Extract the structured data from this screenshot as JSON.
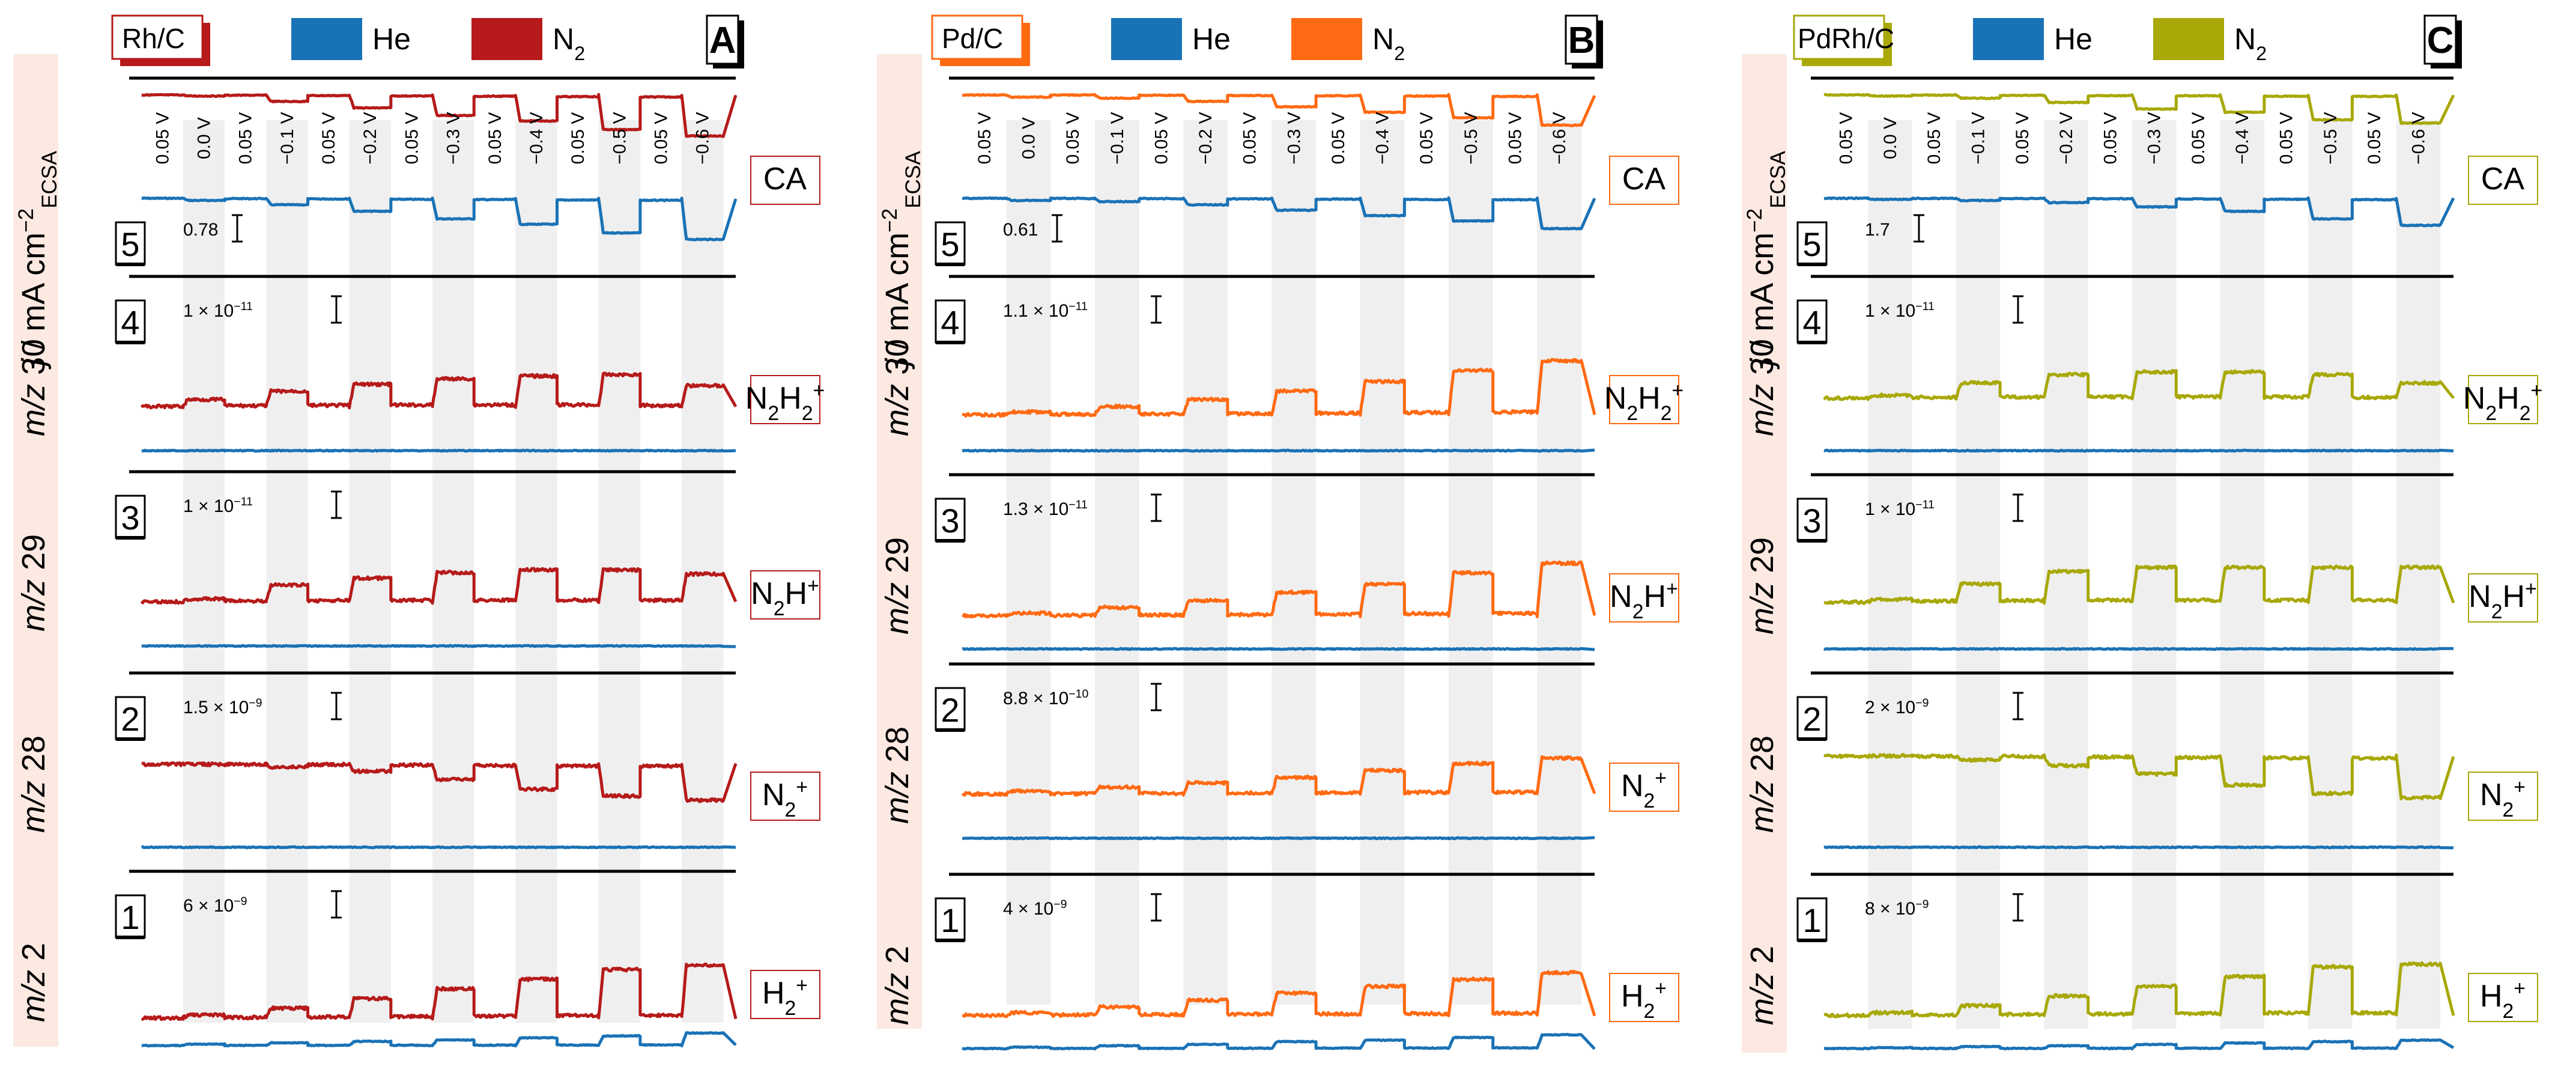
{
  "chart_data": [
    {
      "type": "line",
      "panel": "A",
      "catalyst": "Rh/C",
      "legend": [
        {
          "name": "He",
          "color": "#1a72b6"
        },
        {
          "name": "N2",
          "color": "#b61a1a"
        }
      ],
      "potential_steps": [
        "0.05 V",
        "0.0 V",
        "0.05 V",
        "−0.1 V",
        "0.05 V",
        "−0.2 V",
        "0.05 V",
        "−0.3 V",
        "0.05 V",
        "−0.4 V",
        "0.05 V",
        "−0.5 V",
        "0.05 V",
        "−0.6 V"
      ],
      "rows": [
        {
          "num": "5",
          "signal": "CA",
          "ylabel": "j / mA cm−2 ECSA",
          "scale_bar": "0.78",
          "series": [
            {
              "name": "He",
              "baseline": 0,
              "steps": [
                0.1,
                0.3,
                0.6,
                0.95,
                1.2,
                1.6,
                1.9
              ]
            },
            {
              "name": "N2",
              "baseline": 3.0,
              "steps": [
                0.05,
                0.3,
                0.6,
                0.95,
                1.2,
                1.6,
                1.9
              ]
            }
          ]
        },
        {
          "num": "4",
          "signal": "m/z 30",
          "ion": "N2H2+",
          "scale_bar": "1 × 10−11",
          "series": [
            {
              "name": "He",
              "baseline": 0,
              "steps": [
                0,
                0,
                0,
                0,
                0,
                0,
                0
              ]
            },
            {
              "name": "N2",
              "baseline": 1.6,
              "steps": [
                0.25,
                0.55,
                0.8,
                1.0,
                1.1,
                1.15,
                0.75
              ]
            }
          ]
        },
        {
          "num": "3",
          "signal": "m/z 29",
          "ion": "N2H+",
          "scale_bar": "1 × 10−11",
          "series": [
            {
              "name": "He",
              "baseline": 0,
              "steps": [
                0,
                0,
                0,
                0,
                0,
                0,
                0
              ]
            },
            {
              "name": "N2",
              "baseline": 1.6,
              "steps": [
                0.1,
                0.6,
                0.85,
                1.05,
                1.15,
                1.15,
                1.0
              ]
            }
          ]
        },
        {
          "num": "2",
          "signal": "m/z 28",
          "ion": "N2+",
          "scale_bar": "1.5 × 10−9",
          "series": [
            {
              "name": "He",
              "baseline": 0,
              "steps": [
                0,
                0,
                0,
                0,
                0,
                0,
                0
              ]
            },
            {
              "name": "N2",
              "baseline": 3.0,
              "steps": [
                0.0,
                -0.1,
                -0.25,
                -0.55,
                -0.9,
                -1.15,
                -1.3
              ]
            }
          ]
        },
        {
          "num": "1",
          "signal": "m/z 2",
          "ion": "H2+",
          "scale_bar": "6 × 10−9",
          "series": [
            {
              "name": "He",
              "baseline": 0,
              "steps": [
                0.05,
                0.1,
                0.15,
                0.2,
                0.28,
                0.35,
                0.45
              ]
            },
            {
              "name": "N2",
              "baseline": 1.0,
              "steps": [
                0.1,
                0.35,
                0.7,
                1.05,
                1.4,
                1.75,
                1.9
              ]
            }
          ]
        }
      ]
    },
    {
      "type": "line",
      "panel": "B",
      "catalyst": "Pd/C",
      "legend": [
        {
          "name": "He",
          "color": "#1a72b6"
        },
        {
          "name": "N2",
          "color": "#ff6a13"
        }
      ],
      "potential_steps": [
        "0.05 V",
        "0.0 V",
        "0.05 V",
        "−0.1 V",
        "0.05 V",
        "−0.2 V",
        "0.05 V",
        "−0.3 V",
        "0.05 V",
        "−0.4 V",
        "0.05 V",
        "−0.5 V",
        "0.05 V",
        "−0.6 V"
      ],
      "rows": [
        {
          "num": "5",
          "signal": "CA",
          "ylabel": "j / mA cm−2 ECSA",
          "scale_bar": "0.61",
          "series": [
            {
              "name": "He",
              "baseline": 0,
              "steps": [
                0.1,
                0.15,
                0.3,
                0.55,
                0.8,
                1.05,
                1.4
              ]
            },
            {
              "name": "N2",
              "baseline": 3.2,
              "steps": [
                0.1,
                0.15,
                0.3,
                0.55,
                0.8,
                1.05,
                1.4
              ]
            }
          ]
        },
        {
          "num": "4",
          "signal": "m/z 30",
          "ion": "N2H2+",
          "scale_bar": "1.1 × 10−11",
          "series": [
            {
              "name": "He",
              "baseline": 0,
              "steps": [
                0,
                0,
                0,
                0,
                0,
                0,
                0
              ]
            },
            {
              "name": "N2",
              "baseline": 1.3,
              "steps": [
                0.1,
                0.3,
                0.55,
                0.85,
                1.2,
                1.6,
                1.95
              ]
            }
          ]
        },
        {
          "num": "3",
          "signal": "m/z 29",
          "ion": "N2H+",
          "scale_bar": "1.3 × 10−11",
          "series": [
            {
              "name": "He",
              "baseline": 0,
              "steps": [
                0,
                0,
                0,
                0,
                0,
                0,
                0
              ]
            },
            {
              "name": "N2",
              "baseline": 1.2,
              "steps": [
                0.1,
                0.3,
                0.55,
                0.85,
                1.15,
                1.55,
                1.9
              ]
            }
          ]
        },
        {
          "num": "2",
          "signal": "m/z 28",
          "ion": "N2+",
          "scale_bar": "8.8 × 10−10",
          "series": [
            {
              "name": "He",
              "baseline": 0,
              "steps": [
                0,
                0,
                0,
                0,
                0,
                0,
                0
              ]
            },
            {
              "name": "N2",
              "baseline": 1.6,
              "steps": [
                0.1,
                0.25,
                0.4,
                0.6,
                0.85,
                1.1,
                1.3
              ]
            }
          ]
        },
        {
          "num": "1",
          "signal": "m/z 2",
          "ion": "H2+",
          "scale_bar": "4 × 10−9",
          "series": [
            {
              "name": "He",
              "baseline": 0,
              "steps": [
                0.05,
                0.1,
                0.15,
                0.25,
                0.3,
                0.4,
                0.5
              ]
            },
            {
              "name": "N2",
              "baseline": 1.2,
              "steps": [
                0.1,
                0.3,
                0.55,
                0.8,
                1.05,
                1.3,
                1.55
              ]
            }
          ]
        }
      ]
    },
    {
      "type": "line",
      "panel": "C",
      "catalyst": "PdRh/C",
      "legend": [
        {
          "name": "He",
          "color": "#1a72b6"
        },
        {
          "name": "N2",
          "color": "#a8a808"
        }
      ],
      "potential_steps": [
        "0.05 V",
        "0.0 V",
        "0.05 V",
        "−0.1 V",
        "0.05 V",
        "−0.2 V",
        "0.05 V",
        "−0.3 V",
        "0.05 V",
        "−0.4 V",
        "0.05 V",
        "−0.5 V",
        "0.05 V",
        "−0.6 V"
      ],
      "rows": [
        {
          "num": "5",
          "signal": "CA",
          "ylabel": "j / mA cm−2 ECSA",
          "scale_bar": "1.7",
          "series": [
            {
              "name": "He",
              "baseline": 0,
              "steps": [
                0.05,
                0.1,
                0.2,
                0.4,
                0.6,
                0.95,
                1.25
              ]
            },
            {
              "name": "N2",
              "baseline": 3.3,
              "steps": [
                0.05,
                0.15,
                0.35,
                0.65,
                0.8,
                1.15,
                1.3
              ]
            }
          ]
        },
        {
          "num": "4",
          "signal": "m/z 30",
          "ion": "N2H2+",
          "scale_bar": "1 × 10−11",
          "series": [
            {
              "name": "He",
              "baseline": 0,
              "steps": [
                0,
                0,
                0,
                0,
                0,
                0,
                0
              ]
            },
            {
              "name": "N2",
              "baseline": 1.9,
              "steps": [
                0.1,
                0.55,
                0.85,
                0.95,
                0.95,
                0.85,
                0.55
              ]
            }
          ]
        },
        {
          "num": "3",
          "signal": "m/z 29",
          "ion": "N2H+",
          "scale_bar": "1 × 10−11",
          "series": [
            {
              "name": "He",
              "baseline": 0,
              "steps": [
                0,
                0,
                0,
                0,
                0,
                0,
                0
              ]
            },
            {
              "name": "N2",
              "baseline": 1.7,
              "steps": [
                0.1,
                0.65,
                1.1,
                1.25,
                1.25,
                1.25,
                1.25
              ]
            }
          ]
        },
        {
          "num": "2",
          "signal": "m/z 28",
          "ion": "N2+",
          "scale_bar": "2 × 10−9",
          "series": [
            {
              "name": "He",
              "baseline": 0,
              "steps": [
                0,
                0,
                0,
                0,
                0,
                0,
                0
              ]
            },
            {
              "name": "N2",
              "baseline": 3.3,
              "steps": [
                0.0,
                -0.15,
                -0.35,
                -0.65,
                -1.05,
                -1.35,
                -1.5
              ]
            }
          ]
        },
        {
          "num": "1",
          "signal": "m/z 2",
          "ion": "H2+",
          "scale_bar": "8 × 10−9",
          "series": [
            {
              "name": "He",
              "baseline": 0,
              "steps": [
                0.03,
                0.07,
                0.1,
                0.15,
                0.2,
                0.25,
                0.3
              ]
            },
            {
              "name": "N2",
              "baseline": 1.2,
              "steps": [
                0.1,
                0.35,
                0.7,
                1.05,
                1.4,
                1.75,
                1.85
              ]
            }
          ]
        }
      ]
    }
  ]
}
